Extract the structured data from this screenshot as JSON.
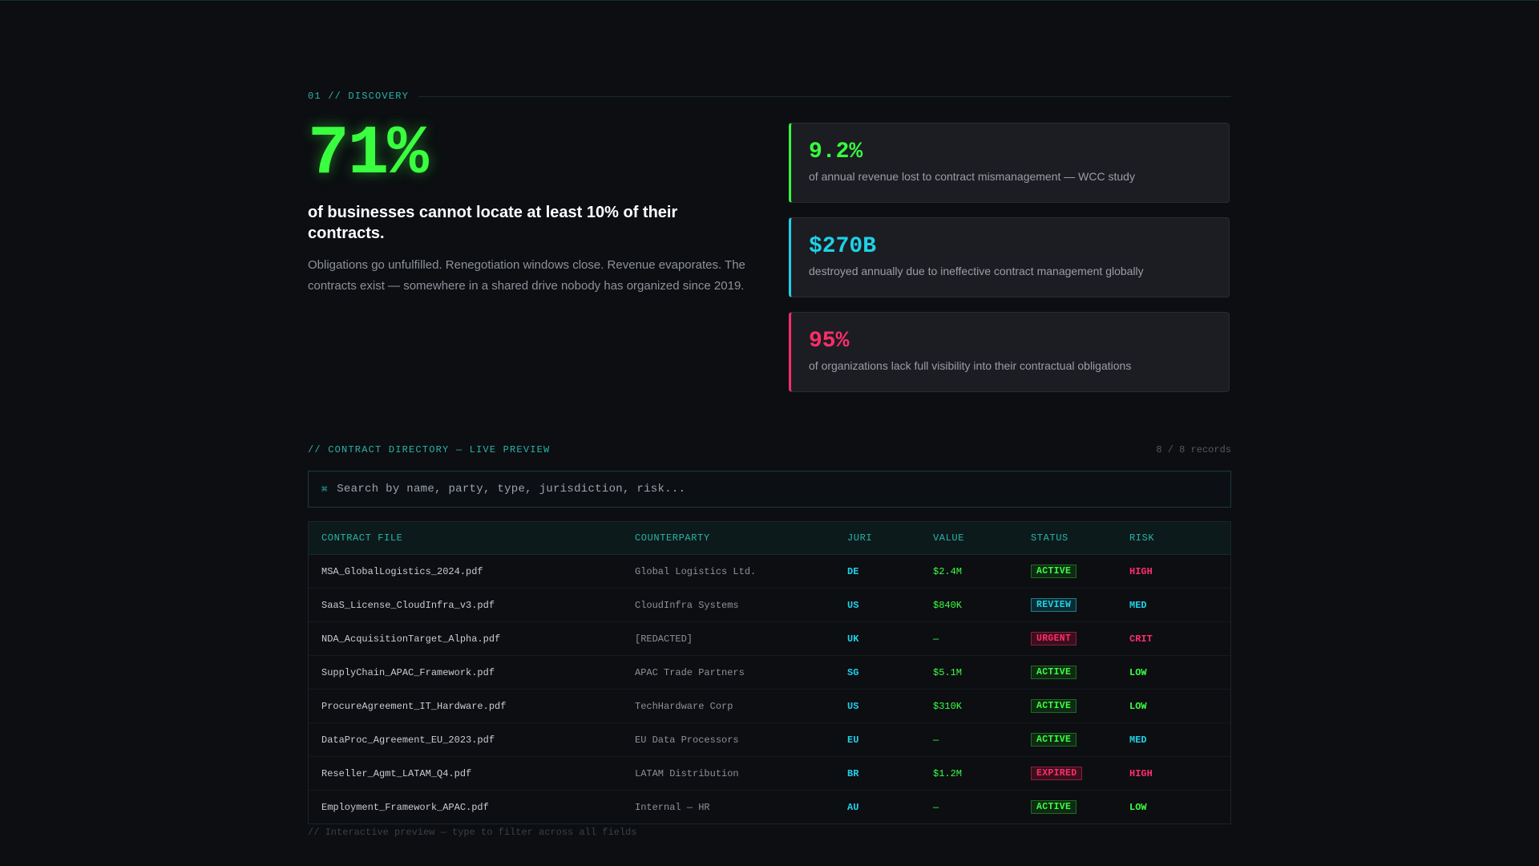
{
  "section": {
    "label": "01 // DISCOVERY"
  },
  "hero": {
    "value": "71%",
    "headline": "of businesses cannot locate at least 10% of their contracts.",
    "body": "Obligations go unfulfilled. Renegotiation windows close. Revenue evaporates. The contracts exist — somewhere in a shared drive nobody has organized since 2019."
  },
  "stats": [
    {
      "value": "9.2%",
      "desc": "of annual revenue lost to contract mismanagement — WCC study",
      "color": "#39ff3f"
    },
    {
      "value": "$270B",
      "desc": "destroyed annually due to ineffective contract management globally",
      "color": "#1fd1e8"
    },
    {
      "value": "95%",
      "desc": "of organizations lack full visibility into their contractual obligations",
      "color": "#ff2d6a"
    }
  ],
  "directory": {
    "title": "// CONTRACT DIRECTORY — LIVE PREVIEW",
    "count": "8 / 8 records",
    "search_icon": "search-icon",
    "search_placeholder": "Search by name, party, type, jurisdiction, risk...",
    "columns": [
      "CONTRACT FILE",
      "COUNTERPARTY",
      "JURI",
      "VALUE",
      "STATUS",
      "RISK"
    ],
    "rows": [
      {
        "file": "MSA_GlobalLogistics_2024.pdf",
        "party": "Global Logistics Ltd.",
        "juri": "DE",
        "value": "$2.4M",
        "status": "ACTIVE",
        "risk": "HIGH"
      },
      {
        "file": "SaaS_License_CloudInfra_v3.pdf",
        "party": "CloudInfra Systems",
        "juri": "US",
        "value": "$840K",
        "status": "REVIEW",
        "risk": "MED"
      },
      {
        "file": "NDA_AcquisitionTarget_Alpha.pdf",
        "party": "[REDACTED]",
        "juri": "UK",
        "value": "—",
        "status": "URGENT",
        "risk": "CRIT"
      },
      {
        "file": "SupplyChain_APAC_Framework.pdf",
        "party": "APAC Trade Partners",
        "juri": "SG",
        "value": "$5.1M",
        "status": "ACTIVE",
        "risk": "LOW"
      },
      {
        "file": "ProcureAgreement_IT_Hardware.pdf",
        "party": "TechHardware Corp",
        "juri": "US",
        "value": "$310K",
        "status": "ACTIVE",
        "risk": "LOW"
      },
      {
        "file": "DataProc_Agreement_EU_2023.pdf",
        "party": "EU Data Processors",
        "juri": "EU",
        "value": "—",
        "status": "ACTIVE",
        "risk": "MED"
      },
      {
        "file": "Reseller_Agmt_LATAM_Q4.pdf",
        "party": "LATAM Distribution",
        "juri": "BR",
        "value": "$1.2M",
        "status": "EXPIRED",
        "risk": "HIGH"
      },
      {
        "file": "Employment_Framework_APAC.pdf",
        "party": "Internal — HR",
        "juri": "AU",
        "value": "—",
        "status": "ACTIVE",
        "risk": "LOW"
      }
    ],
    "footer": "// Interactive preview — type to filter across all fields"
  }
}
